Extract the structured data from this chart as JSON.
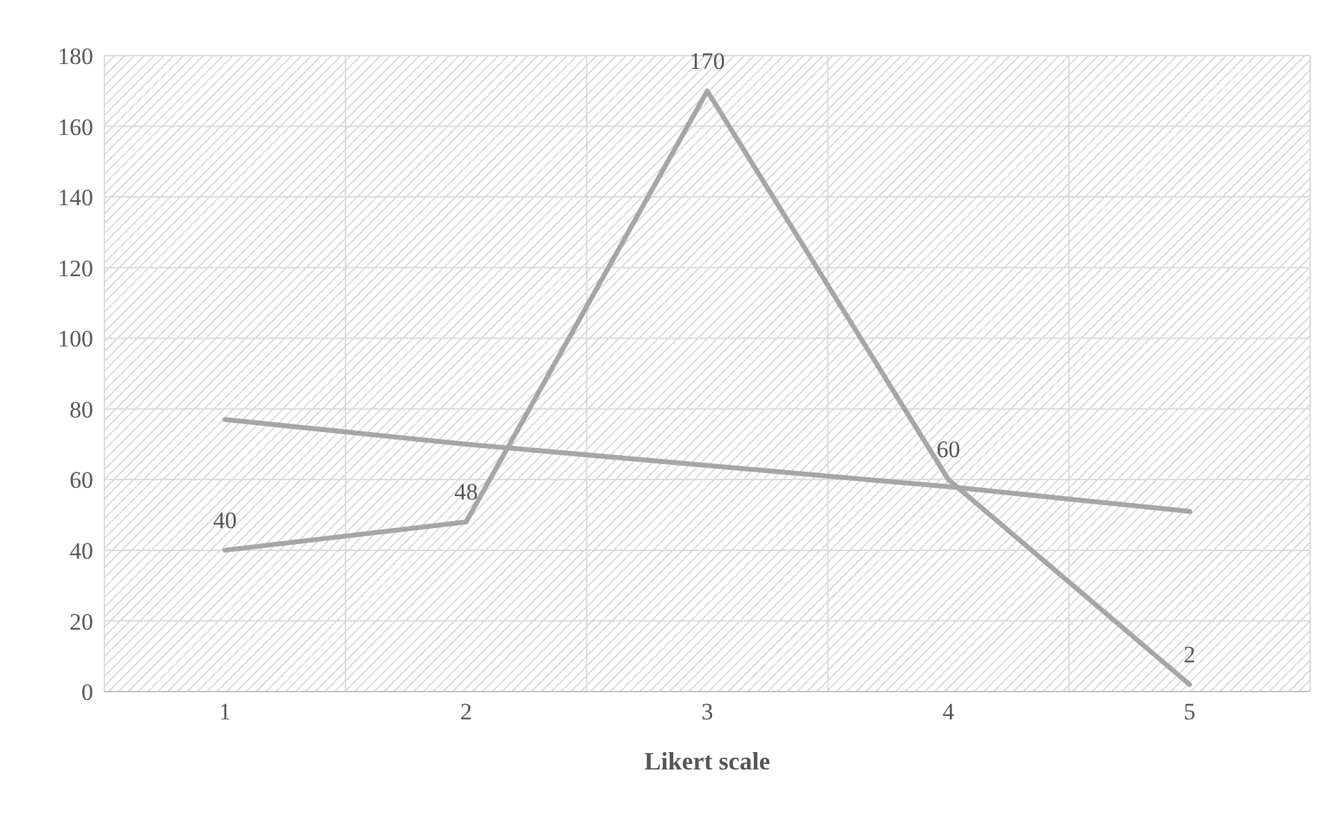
{
  "chart_data": {
    "type": "line",
    "xlabel": "Likert scale",
    "categories": [
      "1",
      "2",
      "3",
      "4",
      "5"
    ],
    "series": [
      {
        "color": "#a6a6a6",
        "values": [
          40,
          48,
          170,
          60,
          2
        ],
        "value_labels": [
          "40",
          "48",
          "170",
          "60",
          "2"
        ]
      },
      {
        "color": "#a6a6a6",
        "values": [
          77,
          70,
          64,
          58,
          51
        ]
      }
    ],
    "ylim": [
      0,
      180
    ],
    "yticks": [
      0,
      20,
      40,
      60,
      80,
      100,
      120,
      140,
      160,
      180
    ],
    "grid": true,
    "marker": "none"
  }
}
